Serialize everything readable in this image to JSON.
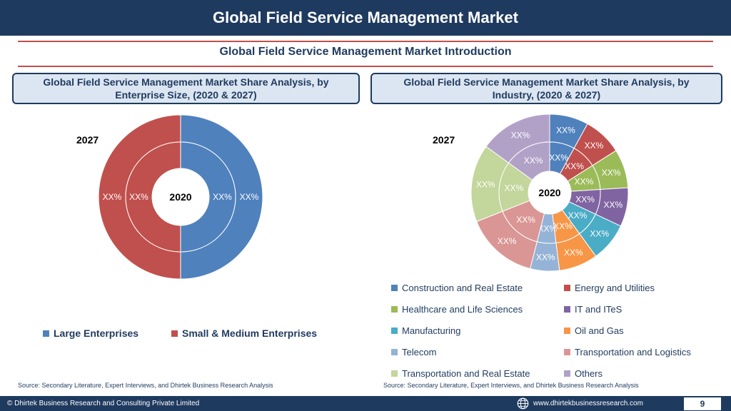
{
  "header": {
    "title": "Global Field Service Management Market"
  },
  "intro": {
    "title": "Global Field Service Management Market  Introduction"
  },
  "left_panel": {
    "title_line1": "Global Field Service Management Market  Share Analysis, by",
    "title_line2": "Enterprise Size, (2020 & 2027)",
    "outer_year": "2027",
    "inner_year": "2020",
    "source": "Source: Secondary Literature, Expert Interviews, and Dhirtek Business Research Analysis"
  },
  "right_panel": {
    "title_line1": "Global Field Service Management Market  Share Analysis, by",
    "title_line2": "Industry, (2020 & 2027)",
    "outer_year": "2027",
    "inner_year": "2020",
    "source": "Source: Secondary Literature, Expert Interviews, and Dhirtek Business Research Analysis"
  },
  "chart_data": [
    {
      "type": "pie",
      "variant": "doughnut",
      "rings": [
        "2027",
        "2020"
      ],
      "categories": [
        "Large Enterprises",
        "Small & Medium Enterprises"
      ],
      "colors": [
        "#4f81bd",
        "#c0504d"
      ],
      "series": [
        {
          "name": "2027",
          "values": [
            50,
            50
          ],
          "labels": [
            "XX%",
            "XX%"
          ]
        },
        {
          "name": "2020",
          "values": [
            50,
            50
          ],
          "labels": [
            "XX%",
            "XX%"
          ]
        }
      ],
      "legend": "bottom"
    },
    {
      "type": "pie",
      "variant": "doughnut",
      "rings": [
        "2027",
        "2020"
      ],
      "categories": [
        "Construction and Real Estate",
        "Energy and Utilities",
        "Healthcare and Life Sciences",
        "IT and ITeS",
        "Manufacturing",
        "Oil and Gas",
        "Telecom",
        "Transportation and Logistics",
        "Transportation and Real Estate",
        "Others"
      ],
      "colors": [
        "#4f81bd",
        "#c0504d",
        "#9bbb59",
        "#8064a2",
        "#4bacc6",
        "#f79646",
        "#95b3d7",
        "#da9694",
        "#c3d69b",
        "#b2a1c7"
      ],
      "series": [
        {
          "name": "2027",
          "values": [
            8,
            8,
            8,
            8,
            8,
            8,
            6,
            15,
            16,
            15
          ],
          "labels": [
            "XX%",
            "XX%",
            "XX%",
            "XX%",
            "XX%",
            "XX%",
            "XX%",
            "XX%",
            "XX%",
            "XX%"
          ]
        },
        {
          "name": "2020",
          "values": [
            8,
            8,
            8,
            8,
            8,
            8,
            6,
            15,
            16,
            15
          ],
          "labels": [
            "XX%",
            "XX%",
            "XX%",
            "XX%",
            "XX%",
            "XX%",
            "XX%",
            "XX%",
            "XX%",
            "XX%"
          ]
        }
      ],
      "legend": "bottom"
    }
  ],
  "footer": {
    "left": "© Dhirtek Business Research and Consulting Private Limited",
    "website": "www.dhirtekbusinessresearch.com",
    "page": "9"
  }
}
